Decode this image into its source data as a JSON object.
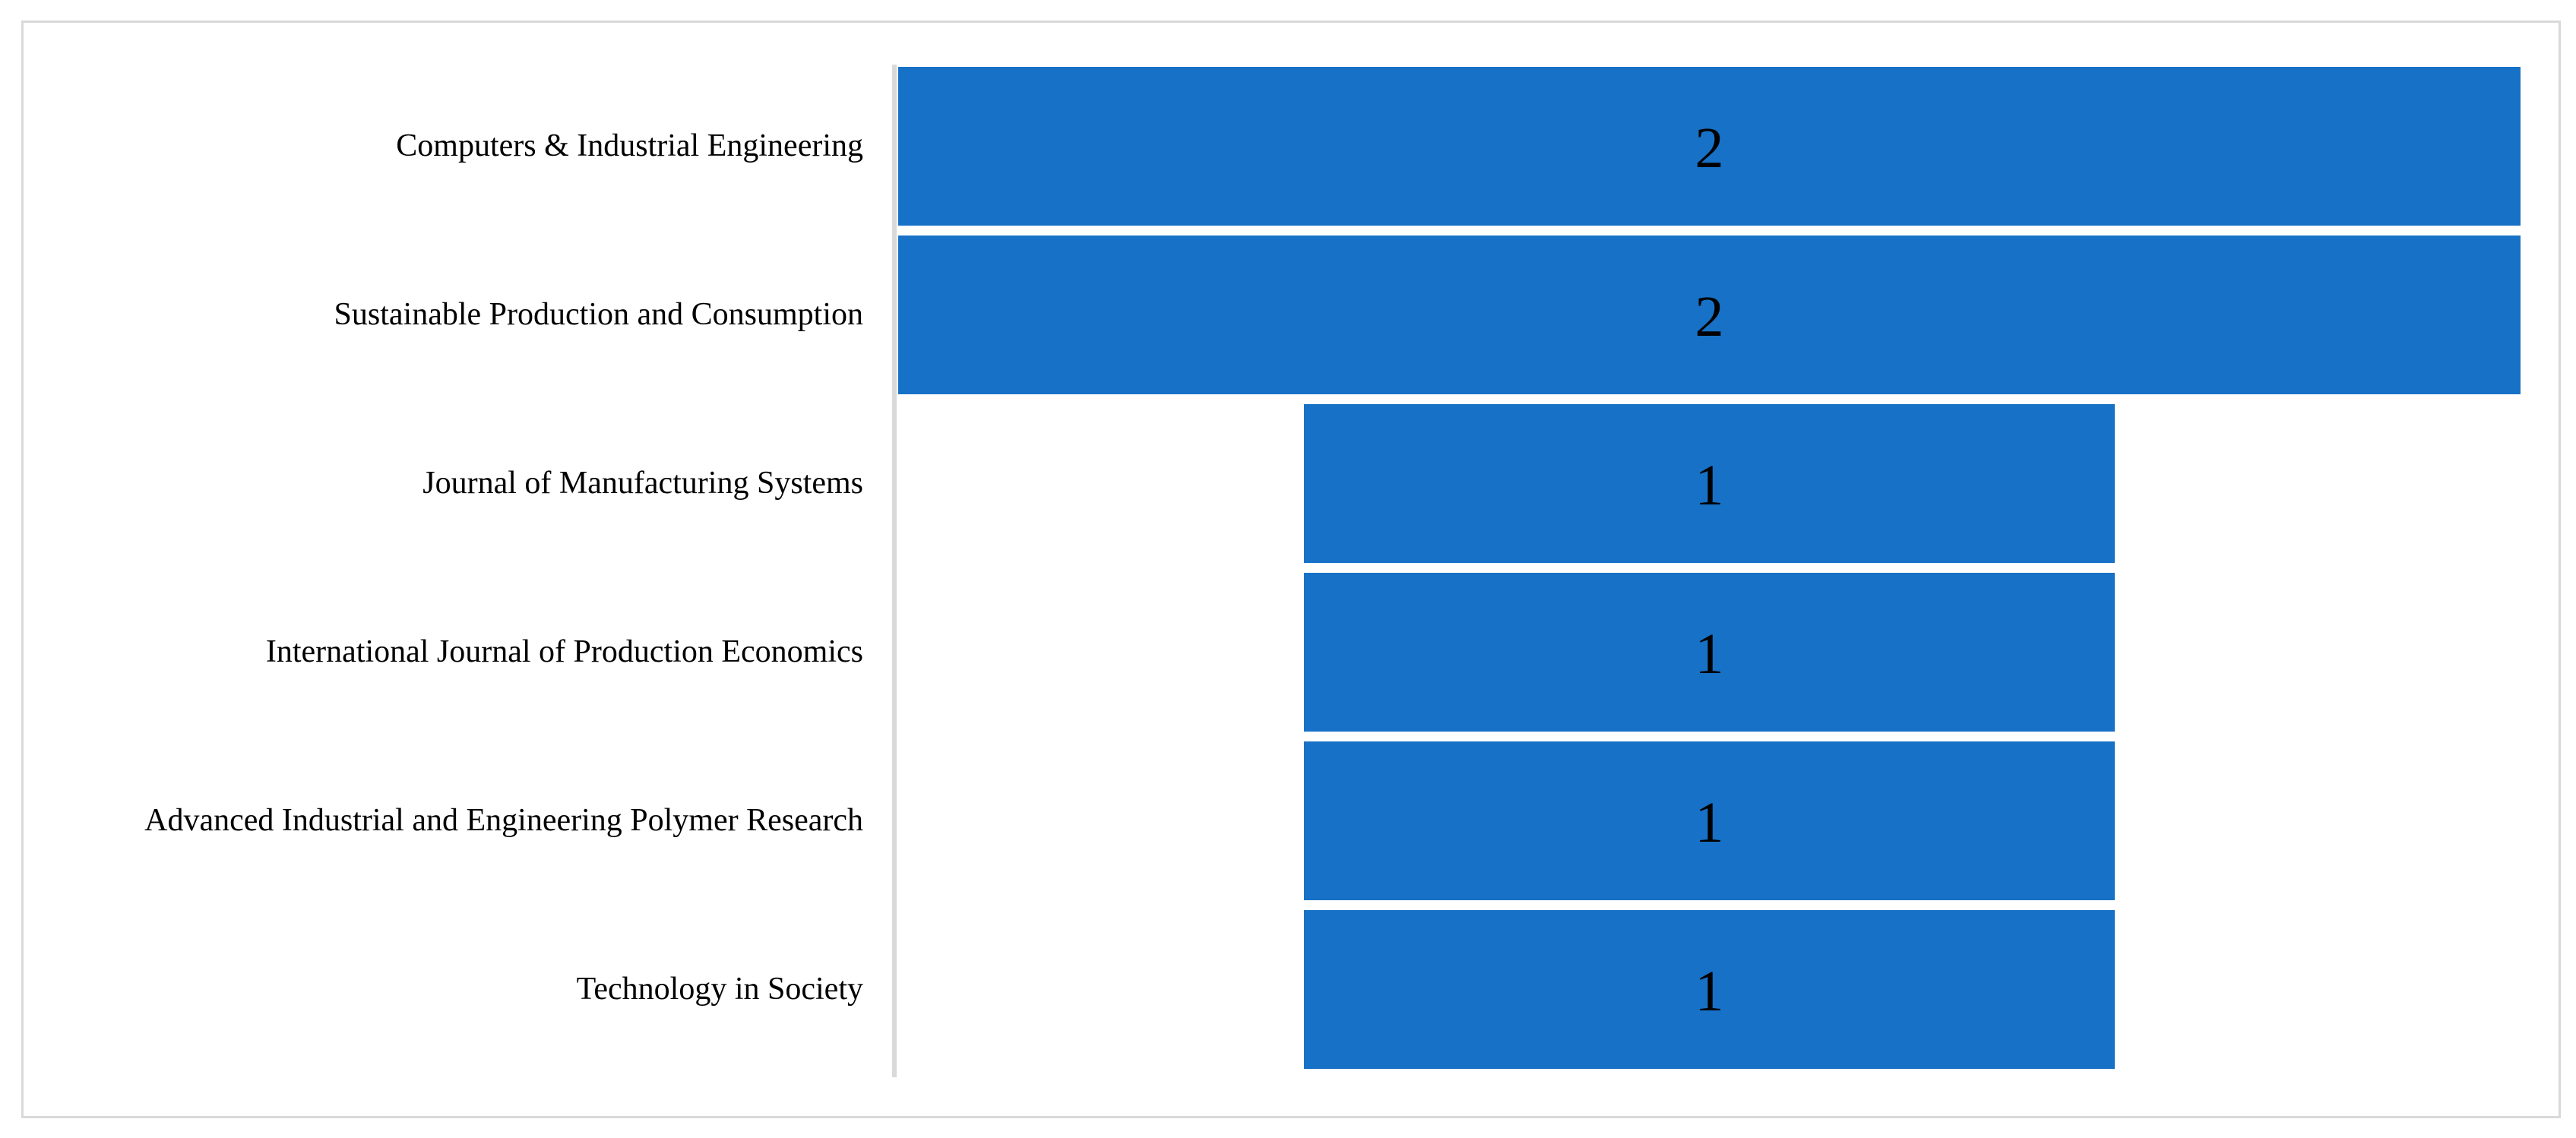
{
  "figure": {
    "background": "#FFFFFF",
    "border_color": "#D9D9D9"
  },
  "chart_data": {
    "type": "bar",
    "subtype": "funnel-centered-horizontal-bars",
    "orientation": "horizontal",
    "title": "",
    "xlabel": "",
    "ylabel": "",
    "categories": [
      "Computers & Industrial Engineering",
      "Sustainable Production and Consumption",
      "Journal of Manufacturing Systems",
      "International Journal of Production Economics",
      "Advanced Industrial and Engineering Polymer Research",
      "Technology in Society"
    ],
    "values": [
      2,
      2,
      1,
      1,
      1,
      1
    ],
    "data_labels": [
      "2",
      "2",
      "1",
      "1",
      "1",
      "1"
    ],
    "xlim": [
      0,
      2
    ],
    "bars_centered": true,
    "grid": false,
    "legend": "none",
    "bar_color": "#1771C6",
    "data_label_color": "#000000",
    "category_label_color": "#000000",
    "axis_line_color": "#D9D9D9"
  }
}
